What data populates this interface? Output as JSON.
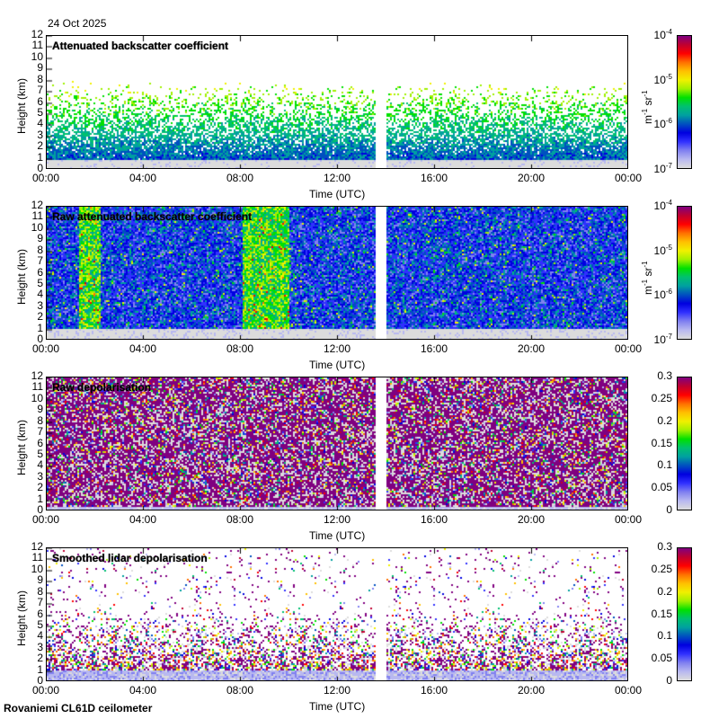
{
  "header": {
    "date": "24 Oct 2025"
  },
  "footer": {
    "site": "Rovaniemi CL61D ceilometer"
  },
  "chart_data": [
    {
      "type": "heatmap",
      "title": "Attenuated backscatter coefficient",
      "xlabel": "Time (UTC)",
      "ylabel": "Height (km)",
      "xticks": [
        "00:00",
        "04:00",
        "08:00",
        "12:00",
        "16:00",
        "20:00",
        "00:00"
      ],
      "yticks": [
        "0",
        "1",
        "2",
        "3",
        "4",
        "5",
        "6",
        "7",
        "8",
        "9",
        "10",
        "11",
        "12"
      ],
      "ylim": [
        0,
        12
      ],
      "xlim_hours": [
        0,
        24
      ],
      "colorbar": {
        "scale": "log",
        "ticks": [
          "10-7",
          "10-6",
          "10-5",
          "10-4"
        ],
        "tick_base": "10",
        "tick_exps": [
          "-7",
          "-6",
          "-5",
          "-4"
        ],
        "unit": "m-1 sr-1",
        "range": [
          1e-07,
          0.0001
        ]
      },
      "data_gap_hours": [
        13.5,
        14.0
      ]
    },
    {
      "type": "heatmap",
      "title": "Raw attenuated backscatter coefficient",
      "xlabel": "Time (UTC)",
      "ylabel": "Height (km)",
      "xticks": [
        "00:00",
        "04:00",
        "08:00",
        "12:00",
        "16:00",
        "20:00",
        "00:00"
      ],
      "yticks": [
        "0",
        "1",
        "2",
        "3",
        "4",
        "5",
        "6",
        "7",
        "8",
        "9",
        "10",
        "11",
        "12"
      ],
      "ylim": [
        0,
        12
      ],
      "xlim_hours": [
        0,
        24
      ],
      "colorbar": {
        "scale": "log",
        "ticks": [
          "10-7",
          "10-6",
          "10-5",
          "10-4"
        ],
        "tick_base": "10",
        "tick_exps": [
          "-7",
          "-6",
          "-5",
          "-4"
        ],
        "unit": "m-1 sr-1",
        "range": [
          1e-07,
          0.0001
        ]
      },
      "data_gap_hours": [
        13.5,
        14.0
      ]
    },
    {
      "type": "heatmap",
      "title": "Raw depolarisation",
      "xlabel": "Time (UTC)",
      "ylabel": "Height (km)",
      "xticks": [
        "00:00",
        "04:00",
        "08:00",
        "12:00",
        "16:00",
        "20:00",
        "00:00"
      ],
      "yticks": [
        "0",
        "1",
        "2",
        "3",
        "4",
        "5",
        "6",
        "7",
        "8",
        "9",
        "10",
        "11",
        "12"
      ],
      "ylim": [
        0,
        12
      ],
      "xlim_hours": [
        0,
        24
      ],
      "colorbar": {
        "scale": "linear",
        "ticks": [
          "0",
          "0.05",
          "0.1",
          "0.15",
          "0.2",
          "0.25",
          "0.3"
        ],
        "range": [
          0,
          0.3
        ]
      },
      "data_gap_hours": [
        13.5,
        14.0
      ]
    },
    {
      "type": "heatmap",
      "title": "Smoothed lidar depolarisation",
      "xlabel": "Time (UTC)",
      "ylabel": "Height (km)",
      "xticks": [
        "00:00",
        "04:00",
        "08:00",
        "12:00",
        "16:00",
        "20:00",
        "00:00"
      ],
      "yticks": [
        "0",
        "1",
        "2",
        "3",
        "4",
        "5",
        "6",
        "7",
        "8",
        "9",
        "10",
        "11",
        "12"
      ],
      "ylim": [
        0,
        12
      ],
      "xlim_hours": [
        0,
        24
      ],
      "colorbar": {
        "scale": "linear",
        "ticks": [
          "0",
          "0.05",
          "0.1",
          "0.15",
          "0.2",
          "0.25",
          "0.3"
        ],
        "range": [
          0,
          0.3
        ]
      },
      "data_gap_hours": [
        13.5,
        14.0
      ]
    }
  ],
  "colormap": [
    "#dcdcdc",
    "#b8b8f0",
    "#8080f0",
    "#3030ff",
    "#0000e0",
    "#0050c0",
    "#00a0a0",
    "#00c070",
    "#00e000",
    "#a0f000",
    "#f0f000",
    "#ffc000",
    "#ff7000",
    "#ff0000",
    "#c00030",
    "#800080"
  ]
}
